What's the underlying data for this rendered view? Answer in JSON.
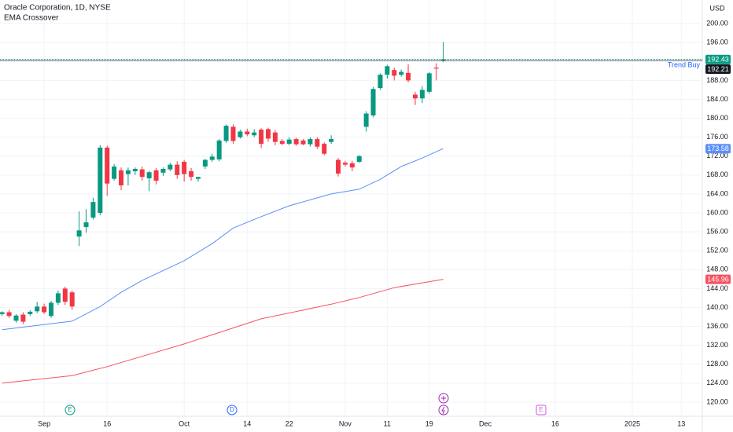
{
  "chart_data": {
    "type": "candlestick",
    "title": "Oracle Corporation, 1D, NYSE",
    "subtitle": "EMA Crossover",
    "currency": "USD",
    "up_color": "#089981",
    "down_color": "#f23645",
    "open": [
      138.6,
      139,
      137.2,
      138.5,
      138.6,
      139.2,
      140.2,
      138.2,
      141,
      144,
      143.2,
      155,
      157,
      159,
      160,
      173.8,
      167.2,
      169,
      168.2,
      168.8,
      169.2,
      167.3,
      169,
      168.5,
      169.2,
      170.2,
      170.8,
      168.8,
      167.2,
      169.8,
      171.2,
      171.3,
      175.2,
      178.2,
      176,
      177.2,
      176.4,
      177.6,
      177.7,
      177,
      175.2,
      174.6,
      175.6,
      175.3,
      174.5,
      175.6,
      174.6,
      175,
      171.2,
      170.6,
      170.5,
      170.8,
      178.2,
      180.6,
      186.4,
      189.2,
      190.2,
      189.2,
      189.6,
      185,
      184.2,
      185.6,
      190.7,
      192.2
    ],
    "high": [
      139.2,
      139.5,
      138.6,
      139,
      139.4,
      141.2,
      140.8,
      141.4,
      143.6,
      144.4,
      143.6,
      160.3,
      160.8,
      163.2,
      174.3,
      174.2,
      170.3,
      169.6,
      169.6,
      169.6,
      169.8,
      168.9,
      169.5,
      169.6,
      170.6,
      170.9,
      171.2,
      169.5,
      167.6,
      171.4,
      172.5,
      175.6,
      178.7,
      178.7,
      177.6,
      177.8,
      177.7,
      177.9,
      178,
      177.5,
      175.6,
      176,
      175.9,
      175.6,
      176,
      176,
      174.9,
      176.4,
      171.6,
      171,
      171,
      172.2,
      181.5,
      186.6,
      189.5,
      191.3,
      190.7,
      190.3,
      191.4,
      185.6,
      186.8,
      189.8,
      191.6,
      196.1
    ],
    "low": [
      138.2,
      137.8,
      136.8,
      136.5,
      138.2,
      138.8,
      138.6,
      137.8,
      140.5,
      140.5,
      139.5,
      153,
      155.8,
      158.6,
      159.5,
      163.6,
      166.8,
      164.8,
      165.8,
      168,
      166.8,
      164.6,
      166,
      167.8,
      168.8,
      167.2,
      166.6,
      166.8,
      166.6,
      169.3,
      170.8,
      170.9,
      174.8,
      174.6,
      175.7,
      176.2,
      176,
      173.7,
      175,
      174.3,
      174.3,
      174.3,
      174.2,
      174.3,
      174,
      173.5,
      172.2,
      174.6,
      167.7,
      169.8,
      168.8,
      170.6,
      177.2,
      180.2,
      186,
      188.4,
      188,
      188.8,
      187.6,
      182.8,
      183.2,
      185.2,
      188,
      191.9
    ],
    "close": [
      139,
      138.2,
      138.3,
      137,
      139.1,
      140.2,
      139,
      141,
      143,
      141.2,
      140.2,
      156.3,
      158,
      162.3,
      173.8,
      166.2,
      169.8,
      165.8,
      169,
      169.3,
      167.6,
      168.6,
      166.8,
      169.3,
      170.2,
      168,
      168.2,
      167.6,
      167.6,
      171.2,
      171.9,
      175.3,
      178.4,
      175.2,
      177.2,
      176.6,
      177,
      174.6,
      175.7,
      175,
      174.6,
      175.5,
      174.5,
      174.5,
      175.6,
      174,
      172.5,
      175.6,
      168.3,
      170.2,
      169.6,
      172,
      181,
      186.2,
      189.2,
      191,
      189,
      189.8,
      188,
      184.2,
      186,
      189.5,
      190.5,
      192.43
    ],
    "series": [
      {
        "type": "line",
        "color": "#5b8ff9",
        "x": [
          0,
          10,
          14,
          17,
          20,
          26,
          30,
          33,
          37,
          41,
          47,
          51,
          54,
          57,
          60,
          63
        ],
        "values": [
          135.3,
          137.1,
          140.2,
          143.2,
          145.7,
          149.9,
          153.5,
          156.8,
          159.2,
          161.5,
          164,
          165,
          167.1,
          169.8,
          171.6,
          173.58
        ]
      },
      {
        "type": "line",
        "color": "#f7525f",
        "x": [
          0,
          10,
          15,
          26,
          37,
          47,
          51,
          56,
          63
        ],
        "values": [
          124,
          125.6,
          127.5,
          132.3,
          137.6,
          140.7,
          142.1,
          144.2,
          145.96
        ]
      }
    ],
    "price_lines": [
      {
        "value": 192.21,
        "color": "#131722"
      }
    ],
    "trend_label": "Trend Buy",
    "events": [
      "E",
      "D",
      "E"
    ],
    "xlim": [
      -0.3,
      100
    ],
    "xticks": [
      {
        "value": 6,
        "label": "Sep"
      },
      {
        "value": 15,
        "label": "16"
      },
      {
        "value": 26,
        "label": "Oct"
      },
      {
        "value": 35,
        "label": "14"
      },
      {
        "value": 41,
        "label": "22"
      },
      {
        "value": 49,
        "label": "Nov"
      },
      {
        "value": 55,
        "label": "11"
      },
      {
        "value": 61,
        "label": "19"
      },
      {
        "value": 69,
        "label": "Dec"
      },
      {
        "value": 79,
        "label": "16"
      },
      {
        "value": 90,
        "label": "2025"
      },
      {
        "value": 97,
        "label": "13"
      }
    ],
    "ylim": [
      117,
      205
    ],
    "yticks": [
      {
        "value": 120,
        "label": "120.00"
      },
      {
        "value": 124,
        "label": "124.00"
      },
      {
        "value": 128,
        "label": "128.00"
      },
      {
        "value": 132,
        "label": "132.00"
      },
      {
        "value": 136,
        "label": "136.00"
      },
      {
        "value": 140,
        "label": "140.00"
      },
      {
        "value": 144,
        "label": "144.00"
      },
      {
        "value": 148,
        "label": "148.00"
      },
      {
        "value": 152,
        "label": "152.00"
      },
      {
        "value": 156,
        "label": "156.00"
      },
      {
        "value": 160,
        "label": "160.00"
      },
      {
        "value": 164,
        "label": "164.00"
      },
      {
        "value": 168,
        "label": "168.00"
      },
      {
        "value": 172,
        "label": "172.00"
      },
      {
        "value": 176,
        "label": "176.00"
      },
      {
        "value": 180,
        "label": "180.00"
      },
      {
        "value": 184,
        "label": "184.00"
      },
      {
        "value": 188,
        "label": "188.00"
      },
      {
        "value": 192,
        "label": "192.00"
      },
      {
        "value": 196,
        "label": "196.00"
      },
      {
        "value": 200,
        "label": "200.00"
      }
    ],
    "grid": true,
    "grid_color": "#f0f3fa"
  }
}
